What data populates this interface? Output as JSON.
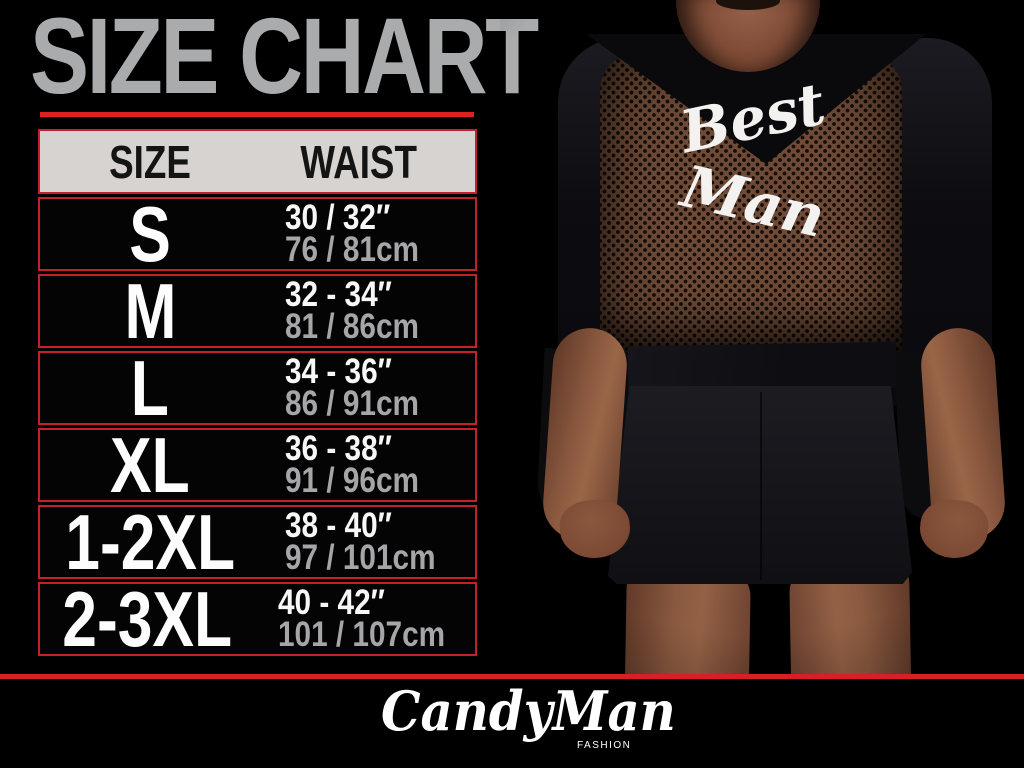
{
  "title": "SIZE CHART",
  "table": {
    "headers": [
      "SIZE",
      "WAIST"
    ],
    "rows": [
      {
        "size": "S",
        "waist_in": "30 / 32″",
        "waist_cm": "76 / 81cm"
      },
      {
        "size": "M",
        "waist_in": "32 - 34″",
        "waist_cm": "81 / 86cm"
      },
      {
        "size": "L",
        "waist_in": "34 - 36″",
        "waist_cm": "86 / 91cm"
      },
      {
        "size": "XL",
        "waist_in": "36 - 38″",
        "waist_cm": "91 / 96cm"
      },
      {
        "size": "1-2XL",
        "waist_in": "38 - 40″",
        "waist_cm": "97 / 101cm"
      },
      {
        "size": "2-3XL",
        "waist_in": "40 - 42″",
        "waist_cm": "101 / 107cm"
      }
    ]
  },
  "photo": {
    "description": "back view of model wearing black robe with sheer mesh back panel",
    "garment_text": "Best Man",
    "garment_text_words": [
      "Best",
      "Man"
    ]
  },
  "brand": {
    "name": "CandyMan",
    "tagline": "FASHION"
  },
  "colors": {
    "background": "#000000",
    "accent_red": "#d81f26",
    "table_border_red": "#c3202a",
    "title_gray": "#a9abad",
    "header_bg": "#d6d3d1",
    "value_white": "#f7f7f7",
    "value_gray": "#a6a6a8",
    "mesh_brown": "#6f4b37",
    "skin_tone": "#8e5b41"
  }
}
